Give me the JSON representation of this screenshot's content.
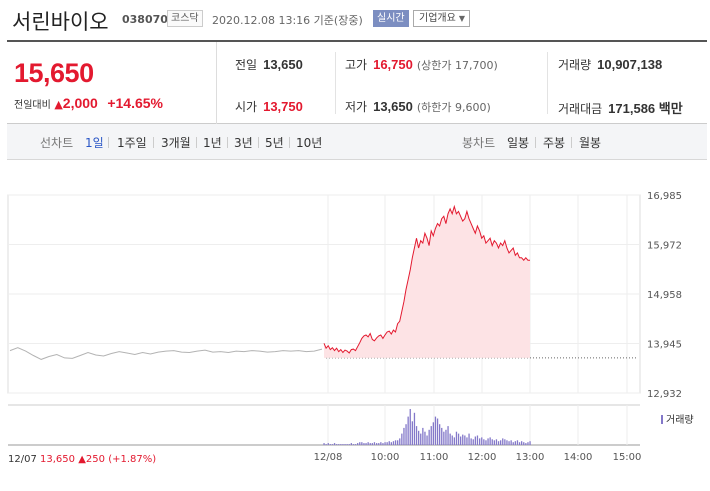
{
  "header": {
    "company_name": "서린바이오",
    "stock_code": "038070",
    "market": "코스닥",
    "datetime": "2020.12.08 13:16 기준(장중)",
    "realtime_badge": "실시간",
    "company_info_label": "기업개요",
    "company_info_icon": "chevron-down-icon"
  },
  "price": {
    "current": "15,650",
    "change_label": "전일대비",
    "change_value": "2,000",
    "change_percent": "+14.65%"
  },
  "stats": {
    "prev_close_label": "전일",
    "prev_close": "13,650",
    "open_label": "시가",
    "open": "13,750",
    "high_label": "고가",
    "high": "16,750",
    "upper_limit": "(상한가 17,700)",
    "low_label": "저가",
    "low": "13,650",
    "lower_limit": "(하한가 9,600)",
    "volume_label": "거래량",
    "volume": "10,907,138",
    "amount_label": "거래대금",
    "amount": "171,586 백만"
  },
  "tabs": {
    "line_label": "선차트",
    "line_periods": [
      "1일",
      "1주일",
      "3개월",
      "1년",
      "3년",
      "5년",
      "10년"
    ],
    "candle_label": "봉차트",
    "candle_periods": [
      "일봉",
      "주봉",
      "월봉"
    ],
    "active": "1일"
  },
  "chart_data": {
    "type": "line",
    "title": "",
    "ylim": [
      12932,
      16985
    ],
    "y_ticks": [
      "16,985",
      "15,972",
      "14,958",
      "13,945",
      "12,932"
    ],
    "x_ticks": [
      "12/08",
      "10:00",
      "11:00",
      "12:00",
      "13:00",
      "14:00",
      "15:00"
    ],
    "grid": true,
    "baseline": 13650,
    "prev_day_label": "12/07",
    "prev_day_close": "13,650",
    "prev_day_change": "250",
    "prev_day_percent": "(+1.87%)",
    "volume_legend": "거래량",
    "series": [
      {
        "x": [
          0,
          1,
          2,
          3,
          4,
          5,
          6,
          7,
          8,
          9,
          10,
          11,
          12,
          13,
          14,
          15,
          16,
          17,
          18,
          19,
          20,
          21,
          22,
          23,
          24,
          25,
          26,
          27,
          28,
          29,
          30,
          31,
          32,
          33,
          34,
          35,
          36,
          37,
          38,
          39,
          40
        ],
        "values": [
          13800,
          13860,
          13790,
          13700,
          13620,
          13680,
          13720,
          13650,
          13640,
          13700,
          13760,
          13710,
          13690,
          13740,
          13780,
          13750,
          13720,
          13760,
          13730,
          13770,
          13790,
          13800,
          13770,
          13760,
          13790,
          13810,
          13770,
          13780,
          13760,
          13790,
          13780,
          13800,
          13790,
          13770,
          13780,
          13800,
          13790,
          13800,
          13780,
          13790,
          13830
        ]
      },
      {
        "x": [
          0,
          2,
          4,
          6,
          8,
          10,
          12,
          14,
          16,
          18,
          20,
          22,
          24,
          26,
          28,
          30,
          32,
          34,
          36,
          38,
          40,
          42,
          44,
          46,
          48,
          50,
          52,
          54,
          56,
          58,
          60,
          62,
          64,
          66,
          68,
          70,
          72,
          74,
          76,
          78,
          80,
          82,
          84,
          86,
          88,
          90,
          92,
          94,
          96,
          98,
          100,
          102,
          104,
          106,
          108,
          110,
          112,
          114,
          116,
          118,
          120,
          122,
          124,
          126,
          128,
          130,
          132,
          134,
          136,
          138,
          140,
          142,
          144,
          146,
          148,
          150,
          152,
          154,
          156,
          158,
          160,
          162,
          164,
          166,
          168,
          170,
          172,
          174,
          176,
          178,
          180,
          182,
          184,
          186,
          188,
          190,
          192,
          194,
          196
        ],
        "values": [
          13950,
          13850,
          13900,
          13820,
          13860,
          13800,
          13850,
          13780,
          13820,
          13760,
          13810,
          13790,
          13750,
          13820,
          13830,
          13800,
          13880,
          13960,
          14050,
          14100,
          14120,
          14080,
          14150,
          14030,
          14000,
          14060,
          14100,
          14120,
          14050,
          14120,
          14180,
          14200,
          14140,
          14220,
          14180,
          14350,
          14400,
          14600,
          14800,
          15050,
          15250,
          15450,
          15700,
          15900,
          16100,
          15900,
          16050,
          16000,
          16200,
          16100,
          15950,
          16250,
          16150,
          16300,
          16400,
          16350,
          16500,
          16550,
          16400,
          16600,
          16700,
          16600,
          16750,
          16600,
          16650,
          16550,
          16450,
          16500,
          16650,
          16500,
          16400,
          16300,
          16200,
          16350,
          16250,
          16100,
          16150,
          16000,
          16050,
          16100,
          15950,
          16050,
          16000,
          15900,
          16000,
          15950,
          16050,
          15900,
          15800,
          15850,
          15900,
          15750,
          15800,
          15700,
          15700,
          15650,
          15700,
          15650,
          15650
        ]
      },
      {
        "name": "거래량",
        "x": [
          0,
          2,
          4,
          6,
          8,
          10,
          12,
          14,
          16,
          18,
          20,
          22,
          24,
          26,
          28,
          30,
          32,
          34,
          36,
          38,
          40,
          42,
          44,
          46,
          48,
          50,
          52,
          54,
          56,
          58,
          60,
          62,
          64,
          66,
          68,
          70,
          72,
          74,
          76,
          78,
          80,
          82,
          84,
          86,
          88,
          90,
          92,
          94,
          96,
          98,
          100,
          102,
          104,
          106,
          108,
          110,
          112,
          114,
          116,
          118,
          120,
          122,
          124,
          126,
          128,
          130,
          132,
          134,
          136,
          138,
          140,
          142,
          144,
          146,
          148,
          150,
          152,
          154,
          156,
          158,
          160,
          162,
          164,
          166,
          168,
          170,
          172,
          174,
          176,
          178,
          180,
          182,
          184,
          186,
          188,
          190,
          192,
          194,
          196
        ],
        "values": [
          2,
          1,
          2,
          1,
          1,
          2,
          1,
          1,
          1,
          1,
          1,
          1,
          1,
          2,
          1,
          1,
          2,
          3,
          3,
          2,
          2,
          3,
          2,
          2,
          3,
          2,
          2,
          3,
          2,
          3,
          3,
          4,
          3,
          4,
          5,
          5,
          7,
          12,
          18,
          22,
          30,
          38,
          25,
          34,
          20,
          15,
          12,
          18,
          14,
          10,
          16,
          20,
          24,
          30,
          28,
          22,
          18,
          14,
          16,
          20,
          12,
          10,
          8,
          14,
          12,
          9,
          11,
          10,
          8,
          12,
          7,
          6,
          9,
          10,
          7,
          8,
          6,
          5,
          7,
          8,
          6,
          5,
          6,
          4,
          5,
          7,
          6,
          5,
          4,
          5,
          3,
          4,
          5,
          3,
          4,
          3,
          2,
          3,
          4
        ]
      }
    ]
  }
}
